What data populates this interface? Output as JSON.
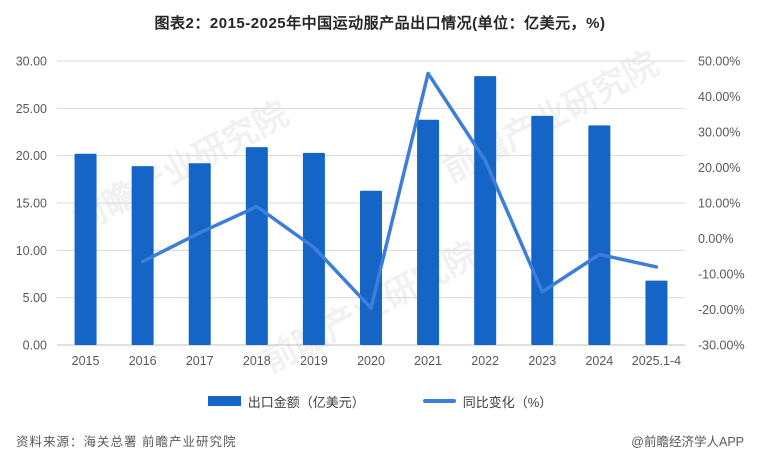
{
  "title": "图表2：2015-2025年中国运动服产品出口情况(单位：亿美元，%)",
  "chart_data": {
    "type": "bar+line",
    "title": "图表2：2015-2025年中国运动服产品出口情况(单位：亿美元，%)",
    "categories": [
      "2015",
      "2016",
      "2017",
      "2018",
      "2019",
      "2020",
      "2021",
      "2022",
      "2023",
      "2024",
      "2025.1-4"
    ],
    "series": [
      {
        "name": "出口金额（亿美元）",
        "type": "bar",
        "axis": "left",
        "color": "#1565C6",
        "values": [
          20.2,
          18.9,
          19.2,
          20.9,
          20.3,
          16.3,
          23.8,
          28.4,
          24.2,
          23.2,
          6.8
        ]
      },
      {
        "name": "同比变化（%）",
        "type": "line",
        "axis": "right",
        "color": "#3E7EDB",
        "values": [
          null,
          -6.5,
          1.6,
          9.0,
          -2.5,
          -19.6,
          46.5,
          22.0,
          -15.0,
          -4.5,
          -8.0
        ]
      }
    ],
    "left_axis": {
      "min": 0,
      "max": 30,
      "step": 5,
      "tick_labels": [
        "30.00",
        "25.00",
        "20.00",
        "15.00",
        "10.00",
        "5.00",
        "0.00"
      ]
    },
    "right_axis": {
      "min": -30,
      "max": 50,
      "step": 10,
      "tick_labels": [
        "50.00%",
        "40.00%",
        "30.00%",
        "20.00%",
        "10.00%",
        "0.00%",
        "-10.00%",
        "-20.00%",
        "-30.00%"
      ]
    },
    "grid": true,
    "legend_position": "bottom"
  },
  "legend": {
    "bar_label": "出口金额（亿美元）",
    "line_label": "同比变化（%）"
  },
  "footer": {
    "source": "资料来源：海关总署 前瞻产业研究院",
    "credit": "@前瞻经济学人APP"
  },
  "watermark": {
    "text": "前瞻产业研究院"
  },
  "colors": {
    "bar": "#1565C6",
    "line": "#3E7EDB",
    "grid": "#D9D9D9",
    "axis_line": "#BFBFBF",
    "tick_text": "#595959",
    "title_text": "#262626"
  }
}
